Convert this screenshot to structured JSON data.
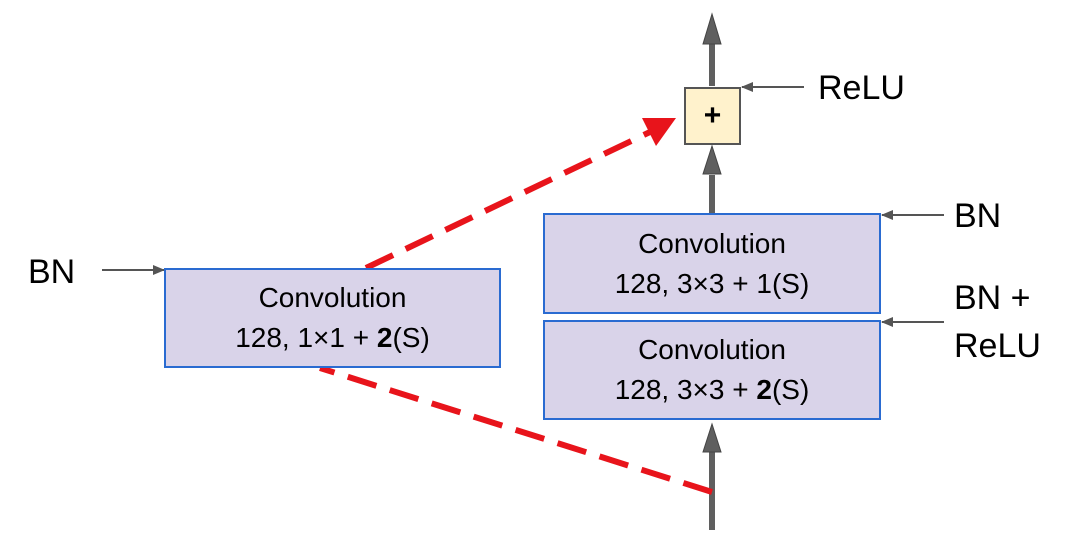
{
  "diagram": {
    "left_block": {
      "line1": "Convolution",
      "line2_pre": "128, 1×1 + ",
      "line2_bold": "2",
      "line2_post": "(S)"
    },
    "top_block": {
      "line1": "Convolution",
      "line2": "128, 3×3 + 1(S)"
    },
    "bottom_block": {
      "line1": "Convolution",
      "line2_pre": "128, 3×3 + ",
      "line2_bold": "2",
      "line2_post": "(S)"
    },
    "add_node": {
      "symbol": "+"
    },
    "labels": {
      "left_bn": "BN",
      "relu": "ReLU",
      "top_bn": "BN",
      "bn_relu_line1": "BN +",
      "bn_relu_line2": "ReLU"
    },
    "colors": {
      "block_fill": "#d9d3e9",
      "block_border": "#2a6bd1",
      "add_fill": "#fff2cc",
      "main_arrow": "#5f5f5f",
      "shortcut": "#e8141b",
      "annotation_arrow": "#555555"
    }
  }
}
